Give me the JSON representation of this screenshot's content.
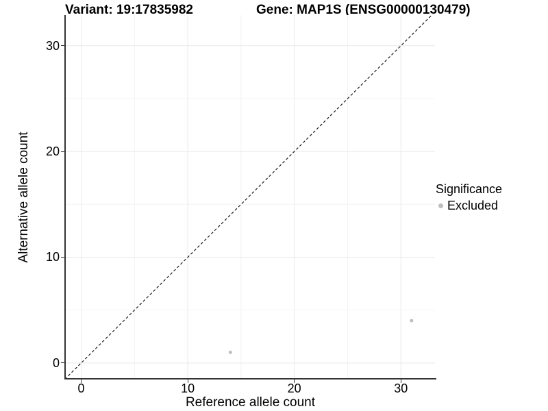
{
  "titles": {
    "variant": "Variant: 19:17835982",
    "gene": "Gene: MAP1S (ENSG00000130479)"
  },
  "legend": {
    "title": "Significance",
    "items": [
      {
        "label": "Excluded",
        "color": "#bebebe"
      }
    ]
  },
  "colors": {
    "point": "#bebebe",
    "grid_major": "#e9e9e9",
    "grid_minor": "#f4f4f4",
    "axis_line": "#333333",
    "identity_line": "#1a1a1a",
    "background": "#ffffff"
  },
  "chart_data": {
    "type": "scatter",
    "title_left": "Variant: 19:17835982",
    "title_right": "Gene: MAP1S (ENSG00000130479)",
    "xlabel": "Reference allele count",
    "ylabel": "Alternative allele count",
    "xlim": [
      -1.45,
      33.2
    ],
    "ylim": [
      -1.5,
      32.9
    ],
    "x_major_ticks": [
      0,
      10,
      20,
      30
    ],
    "x_tick_labels": [
      "0",
      "10",
      "20",
      "30"
    ],
    "y_major_ticks": [
      0,
      10,
      20,
      30
    ],
    "y_tick_labels": [
      "0",
      "10",
      "20",
      "30"
    ],
    "x_minor_ticks": [
      5,
      15,
      25
    ],
    "y_minor_ticks": [
      5,
      15,
      25
    ],
    "grid": true,
    "legend_position": "right",
    "reference_line": {
      "kind": "identity",
      "style": "dashed",
      "color": "#1a1a1a"
    },
    "series": [
      {
        "name": "Excluded",
        "color": "#bebebe",
        "points": [
          {
            "x": 14,
            "y": 1
          },
          {
            "x": 31,
            "y": 4
          }
        ]
      }
    ]
  }
}
